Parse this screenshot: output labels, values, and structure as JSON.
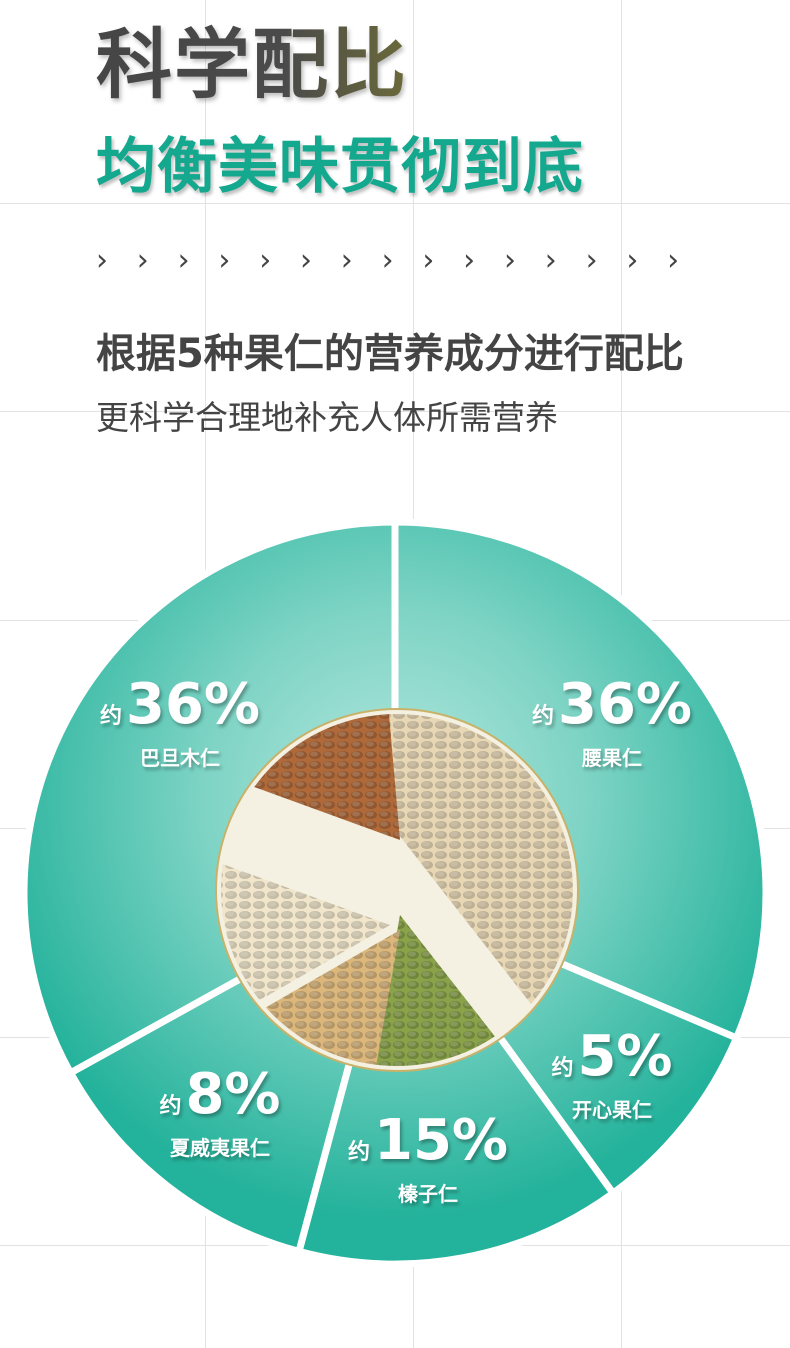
{
  "header": {
    "title": "科学配比",
    "subtitle": "均衡美味贯彻到底",
    "chevron_glyph": "›",
    "headline": "根据5种果仁的营养成分进行配比",
    "description": "更科学合理地补充人体所需营养"
  },
  "colors": {
    "accent": "#14a88f",
    "pie_edge": "#2bb49e",
    "pie_center": "#b4e7de",
    "text": "#444444"
  },
  "chart_data": {
    "type": "pie",
    "title": "",
    "prefix": "约",
    "slices": [
      {
        "name": "腰果仁",
        "value": 36,
        "label": "36%",
        "nut_color": "#e8d7b4"
      },
      {
        "name": "开心果仁",
        "value": 5,
        "label": "5%",
        "nut_color": "#8aa34a"
      },
      {
        "name": "榛子仁",
        "value": 15,
        "label": "15%",
        "nut_color": "#dcb77c"
      },
      {
        "name": "夏威夷果仁",
        "value": 8,
        "label": "8%",
        "nut_color": "#f1e6cc"
      },
      {
        "name": "巴旦木仁",
        "value": 36,
        "label": "36%",
        "nut_color": "#b06a3a"
      }
    ]
  }
}
